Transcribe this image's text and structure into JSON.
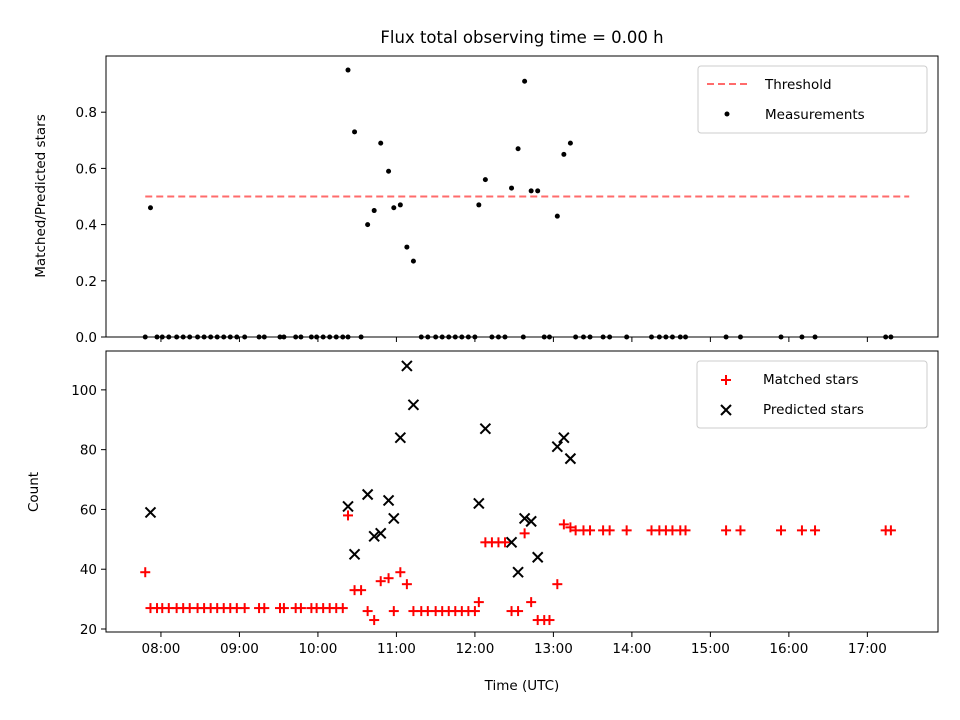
{
  "figure_title": "Flux total observing time = 0.00 h",
  "colors": {
    "threshold": "#ff6b6b",
    "measurements": "#000000",
    "matched": "#ff0000",
    "predicted": "#000000"
  },
  "chart_data": [
    {
      "type": "scatter",
      "title": "Flux total observing time = 0.00 h",
      "xlabel": "",
      "ylabel": "Matched/Predicted stars",
      "xlim": [
        "07:18",
        "17:54"
      ],
      "ylim": [
        0,
        1.0
      ],
      "xticks": [
        "08:00",
        "09:00",
        "10:00",
        "11:00",
        "12:00",
        "13:00",
        "14:00",
        "15:00",
        "16:00",
        "17:00"
      ],
      "yticks": [
        "0.0",
        "0.2",
        "0.4",
        "0.6",
        "0.8"
      ],
      "legend_position": "top-right",
      "threshold": {
        "name": "Threshold",
        "value": 0.5,
        "x_start": "07:48",
        "x_end": "17:32",
        "style": "dashed"
      },
      "series": [
        {
          "name": "Measurements",
          "marker": "dot",
          "points": [
            {
              "x": "07:48",
              "y": 0.0
            },
            {
              "x": "07:52",
              "y": 0.46
            },
            {
              "x": "07:57",
              "y": 0.0
            },
            {
              "x": "08:01",
              "y": 0.0
            },
            {
              "x": "08:06",
              "y": 0.0
            },
            {
              "x": "08:12",
              "y": 0.0
            },
            {
              "x": "08:17",
              "y": 0.0
            },
            {
              "x": "08:22",
              "y": 0.0
            },
            {
              "x": "08:28",
              "y": 0.0
            },
            {
              "x": "08:33",
              "y": 0.0
            },
            {
              "x": "08:38",
              "y": 0.0
            },
            {
              "x": "08:43",
              "y": 0.0
            },
            {
              "x": "08:48",
              "y": 0.0
            },
            {
              "x": "08:53",
              "y": 0.0
            },
            {
              "x": "08:58",
              "y": 0.0
            },
            {
              "x": "09:04",
              "y": 0.0
            },
            {
              "x": "09:15",
              "y": 0.0
            },
            {
              "x": "09:19",
              "y": 0.0
            },
            {
              "x": "09:31",
              "y": 0.0
            },
            {
              "x": "09:34",
              "y": 0.0
            },
            {
              "x": "09:43",
              "y": 0.0
            },
            {
              "x": "09:47",
              "y": 0.0
            },
            {
              "x": "09:55",
              "y": 0.0
            },
            {
              "x": "09:59",
              "y": 0.0
            },
            {
              "x": "10:04",
              "y": 0.0
            },
            {
              "x": "10:09",
              "y": 0.0
            },
            {
              "x": "10:14",
              "y": 0.0
            },
            {
              "x": "10:19",
              "y": 0.0
            },
            {
              "x": "10:23",
              "y": 0.0
            },
            {
              "x": "10:23",
              "y": 0.95
            },
            {
              "x": "10:28",
              "y": 0.73
            },
            {
              "x": "10:33",
              "y": 0.0
            },
            {
              "x": "10:38",
              "y": 0.4
            },
            {
              "x": "10:43",
              "y": 0.45
            },
            {
              "x": "10:48",
              "y": 0.69
            },
            {
              "x": "10:54",
              "y": 0.59
            },
            {
              "x": "10:58",
              "y": 0.46
            },
            {
              "x": "11:03",
              "y": 0.47
            },
            {
              "x": "11:08",
              "y": 0.32
            },
            {
              "x": "11:13",
              "y": 0.27
            },
            {
              "x": "11:19",
              "y": 0.0
            },
            {
              "x": "11:24",
              "y": 0.0
            },
            {
              "x": "11:30",
              "y": 0.0
            },
            {
              "x": "11:35",
              "y": 0.0
            },
            {
              "x": "11:40",
              "y": 0.0
            },
            {
              "x": "11:45",
              "y": 0.0
            },
            {
              "x": "11:50",
              "y": 0.0
            },
            {
              "x": "11:55",
              "y": 0.0
            },
            {
              "x": "12:00",
              "y": 0.0
            },
            {
              "x": "12:03",
              "y": 0.47
            },
            {
              "x": "12:08",
              "y": 0.56
            },
            {
              "x": "12:13",
              "y": 0.0
            },
            {
              "x": "12:18",
              "y": 0.0
            },
            {
              "x": "12:23",
              "y": 0.0
            },
            {
              "x": "12:28",
              "y": 0.53
            },
            {
              "x": "12:33",
              "y": 0.67
            },
            {
              "x": "12:37",
              "y": 0.0
            },
            {
              "x": "12:38",
              "y": 0.91
            },
            {
              "x": "12:43",
              "y": 0.52
            },
            {
              "x": "12:48",
              "y": 0.52
            },
            {
              "x": "12:53",
              "y": 0.0
            },
            {
              "x": "12:57",
              "y": 0.0
            },
            {
              "x": "13:03",
              "y": 0.43
            },
            {
              "x": "13:08",
              "y": 0.65
            },
            {
              "x": "13:13",
              "y": 0.69
            },
            {
              "x": "13:17",
              "y": 0.0
            },
            {
              "x": "13:23",
              "y": 0.0
            },
            {
              "x": "13:28",
              "y": 0.0
            },
            {
              "x": "13:38",
              "y": 0.0
            },
            {
              "x": "13:43",
              "y": 0.0
            },
            {
              "x": "13:56",
              "y": 0.0
            },
            {
              "x": "14:15",
              "y": 0.0
            },
            {
              "x": "14:21",
              "y": 0.0
            },
            {
              "x": "14:26",
              "y": 0.0
            },
            {
              "x": "14:31",
              "y": 0.0
            },
            {
              "x": "14:37",
              "y": 0.0
            },
            {
              "x": "14:41",
              "y": 0.0
            },
            {
              "x": "15:12",
              "y": 0.0
            },
            {
              "x": "15:23",
              "y": 0.0
            },
            {
              "x": "15:54",
              "y": 0.0
            },
            {
              "x": "16:10",
              "y": 0.0
            },
            {
              "x": "16:20",
              "y": 0.0
            },
            {
              "x": "17:14",
              "y": 0.0
            },
            {
              "x": "17:18",
              "y": 0.0
            }
          ]
        }
      ]
    },
    {
      "type": "scatter",
      "title": "",
      "xlabel": "Time (UTC)",
      "ylabel": "Count",
      "xlim": [
        "07:18",
        "17:54"
      ],
      "ylim": [
        19,
        113
      ],
      "xticks": [
        "08:00",
        "09:00",
        "10:00",
        "11:00",
        "12:00",
        "13:00",
        "14:00",
        "15:00",
        "16:00",
        "17:00"
      ],
      "yticks": [
        "20",
        "40",
        "60",
        "80",
        "100"
      ],
      "legend_position": "top-right",
      "series": [
        {
          "name": "Matched stars",
          "marker": "plus",
          "points": [
            {
              "x": "07:48",
              "y": 39
            },
            {
              "x": "07:52",
              "y": 27
            },
            {
              "x": "07:57",
              "y": 27
            },
            {
              "x": "08:01",
              "y": 27
            },
            {
              "x": "08:06",
              "y": 27
            },
            {
              "x": "08:12",
              "y": 27
            },
            {
              "x": "08:17",
              "y": 27
            },
            {
              "x": "08:22",
              "y": 27
            },
            {
              "x": "08:28",
              "y": 27
            },
            {
              "x": "08:33",
              "y": 27
            },
            {
              "x": "08:38",
              "y": 27
            },
            {
              "x": "08:43",
              "y": 27
            },
            {
              "x": "08:48",
              "y": 27
            },
            {
              "x": "08:53",
              "y": 27
            },
            {
              "x": "08:58",
              "y": 27
            },
            {
              "x": "09:04",
              "y": 27
            },
            {
              "x": "09:15",
              "y": 27
            },
            {
              "x": "09:19",
              "y": 27
            },
            {
              "x": "09:31",
              "y": 27
            },
            {
              "x": "09:34",
              "y": 27
            },
            {
              "x": "09:43",
              "y": 27
            },
            {
              "x": "09:47",
              "y": 27
            },
            {
              "x": "09:55",
              "y": 27
            },
            {
              "x": "09:59",
              "y": 27
            },
            {
              "x": "10:04",
              "y": 27
            },
            {
              "x": "10:09",
              "y": 27
            },
            {
              "x": "10:14",
              "y": 27
            },
            {
              "x": "10:19",
              "y": 27
            },
            {
              "x": "10:23",
              "y": 58
            },
            {
              "x": "10:28",
              "y": 33
            },
            {
              "x": "10:33",
              "y": 33
            },
            {
              "x": "10:38",
              "y": 26
            },
            {
              "x": "10:43",
              "y": 23
            },
            {
              "x": "10:48",
              "y": 36
            },
            {
              "x": "10:54",
              "y": 37
            },
            {
              "x": "10:58",
              "y": 26
            },
            {
              "x": "11:03",
              "y": 39
            },
            {
              "x": "11:08",
              "y": 35
            },
            {
              "x": "11:13",
              "y": 26
            },
            {
              "x": "11:19",
              "y": 26
            },
            {
              "x": "11:24",
              "y": 26
            },
            {
              "x": "11:30",
              "y": 26
            },
            {
              "x": "11:35",
              "y": 26
            },
            {
              "x": "11:40",
              "y": 26
            },
            {
              "x": "11:45",
              "y": 26
            },
            {
              "x": "11:50",
              "y": 26
            },
            {
              "x": "11:55",
              "y": 26
            },
            {
              "x": "12:00",
              "y": 26
            },
            {
              "x": "12:03",
              "y": 29
            },
            {
              "x": "12:08",
              "y": 49
            },
            {
              "x": "12:13",
              "y": 49
            },
            {
              "x": "12:18",
              "y": 49
            },
            {
              "x": "12:23",
              "y": 49
            },
            {
              "x": "12:28",
              "y": 26
            },
            {
              "x": "12:33",
              "y": 26
            },
            {
              "x": "12:38",
              "y": 52
            },
            {
              "x": "12:43",
              "y": 29
            },
            {
              "x": "12:48",
              "y": 23
            },
            {
              "x": "12:53",
              "y": 23
            },
            {
              "x": "12:57",
              "y": 23
            },
            {
              "x": "13:03",
              "y": 35
            },
            {
              "x": "13:08",
              "y": 55
            },
            {
              "x": "13:13",
              "y": 54
            },
            {
              "x": "13:17",
              "y": 53
            },
            {
              "x": "13:23",
              "y": 53
            },
            {
              "x": "13:28",
              "y": 53
            },
            {
              "x": "13:38",
              "y": 53
            },
            {
              "x": "13:43",
              "y": 53
            },
            {
              "x": "13:56",
              "y": 53
            },
            {
              "x": "14:15",
              "y": 53
            },
            {
              "x": "14:21",
              "y": 53
            },
            {
              "x": "14:26",
              "y": 53
            },
            {
              "x": "14:31",
              "y": 53
            },
            {
              "x": "14:37",
              "y": 53
            },
            {
              "x": "14:41",
              "y": 53
            },
            {
              "x": "15:12",
              "y": 53
            },
            {
              "x": "15:23",
              "y": 53
            },
            {
              "x": "15:54",
              "y": 53
            },
            {
              "x": "16:10",
              "y": 53
            },
            {
              "x": "16:20",
              "y": 53
            },
            {
              "x": "17:14",
              "y": 53
            },
            {
              "x": "17:18",
              "y": 53
            }
          ]
        },
        {
          "name": "Predicted stars",
          "marker": "x",
          "points": [
            {
              "x": "07:52",
              "y": 59
            },
            {
              "x": "10:23",
              "y": 61
            },
            {
              "x": "10:28",
              "y": 45
            },
            {
              "x": "10:38",
              "y": 65
            },
            {
              "x": "10:43",
              "y": 51
            },
            {
              "x": "10:48",
              "y": 52
            },
            {
              "x": "10:54",
              "y": 63
            },
            {
              "x": "10:58",
              "y": 57
            },
            {
              "x": "11:03",
              "y": 84
            },
            {
              "x": "11:08",
              "y": 108
            },
            {
              "x": "11:13",
              "y": 95
            },
            {
              "x": "12:03",
              "y": 62
            },
            {
              "x": "12:08",
              "y": 87
            },
            {
              "x": "12:28",
              "y": 49
            },
            {
              "x": "12:33",
              "y": 39
            },
            {
              "x": "12:38",
              "y": 57
            },
            {
              "x": "12:43",
              "y": 56
            },
            {
              "x": "12:48",
              "y": 44
            },
            {
              "x": "13:03",
              "y": 81
            },
            {
              "x": "13:08",
              "y": 84
            },
            {
              "x": "13:13",
              "y": 77
            }
          ]
        }
      ]
    }
  ]
}
